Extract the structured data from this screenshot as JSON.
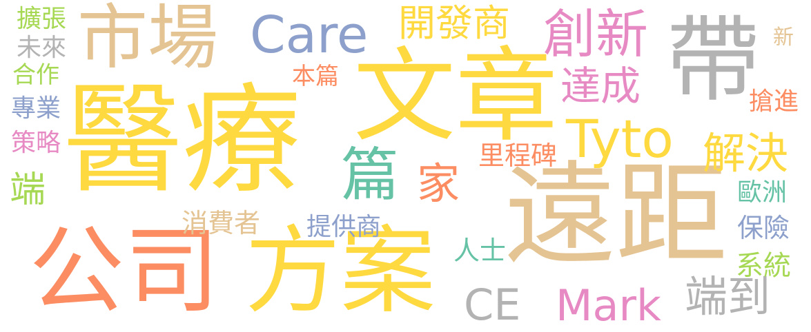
{
  "palette": {
    "yellow": "#FFD940",
    "orange": "#FC8D62",
    "tan": "#E5C494",
    "gray": "#B3B3B3",
    "blue": "#8DA0CB",
    "pink": "#E78AC3",
    "green": "#A6D854",
    "teal": "#66C2A5"
  },
  "words": {
    "w01": "醫療",
    "w02": "文章",
    "w03": "遠距",
    "w04": "公司",
    "w05": "方案",
    "w06": "市場",
    "w07": "帶",
    "w08": "Care",
    "w09": "開發商",
    "w10": "創新",
    "w11": "Tyto",
    "w12": "篇",
    "w13": "家",
    "w14": "解決",
    "w15": "達成",
    "w16": "里程碑",
    "w17": "本篇",
    "w18": "Mark",
    "w19": "CE",
    "w20": "端到",
    "w21": "提供商",
    "w22": "消費者",
    "w23": "人士",
    "w24": "歐洲",
    "w25": "保險",
    "w26": "系統",
    "w27": "搶進",
    "w28": "新",
    "w29": "擴張",
    "w30": "未來",
    "w31": "合作",
    "w32": "專業",
    "w33": "策略",
    "w34": "端"
  }
}
